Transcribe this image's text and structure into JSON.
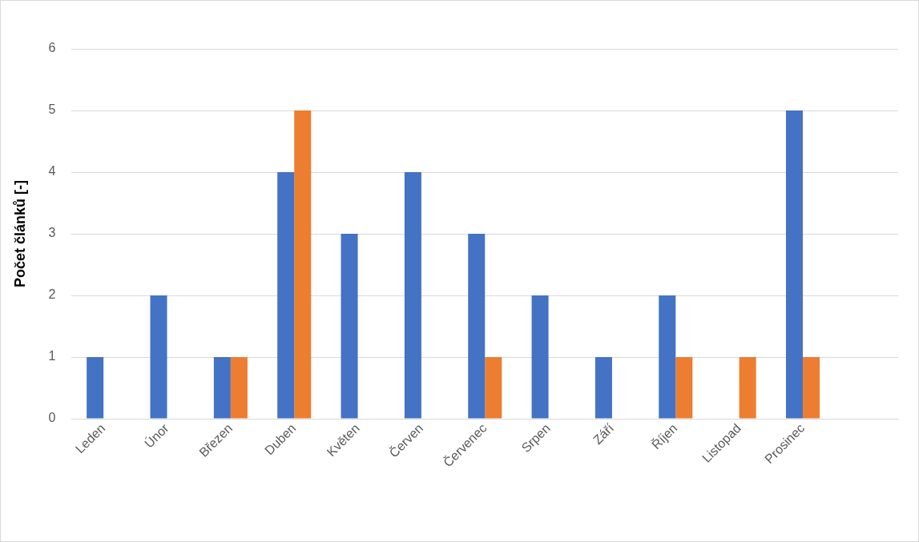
{
  "chart_data": {
    "type": "bar",
    "ylabel": "Počet článků [-]",
    "categories": [
      "Leden",
      "Únor",
      "Březen",
      "Duben",
      "Květen",
      "Červen",
      "Červenec",
      "Srpen",
      "Září",
      "Říjen",
      "Listopad",
      "Prosinec",
      null
    ],
    "series": [
      {
        "color": "#4472c4",
        "values": [
          1,
          2,
          1,
          4,
          3,
          4,
          3,
          2,
          1,
          2,
          0,
          5,
          null
        ]
      },
      {
        "color": "#ed7d31",
        "values": [
          0,
          0,
          1,
          5,
          0,
          0,
          1,
          0,
          0,
          1,
          1,
          1,
          null
        ]
      }
    ],
    "ylim": [
      0,
      6
    ],
    "yticks": [
      0,
      1,
      2,
      3,
      4,
      5,
      6
    ],
    "grid": "y",
    "legend": false
  }
}
